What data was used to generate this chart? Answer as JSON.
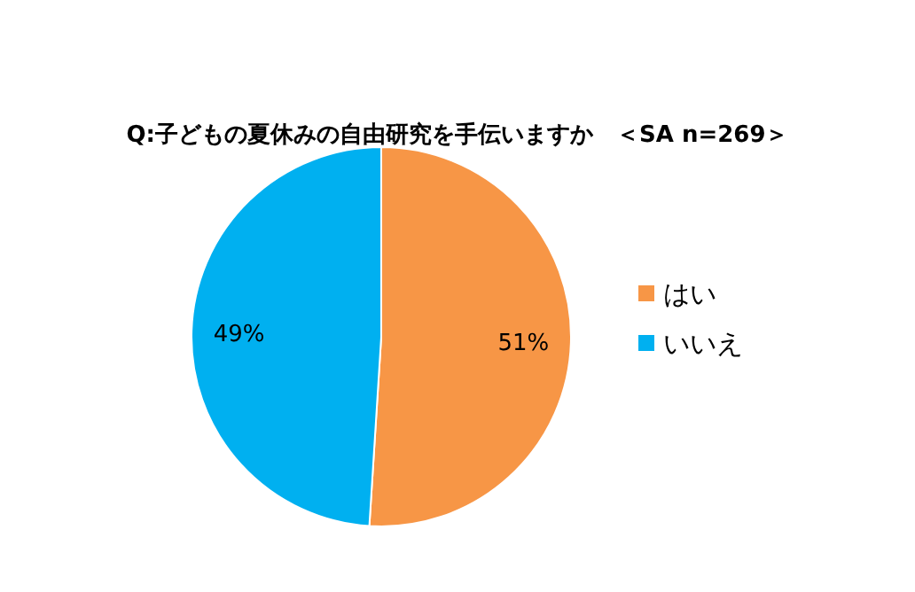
{
  "chart_data": {
    "type": "pie",
    "title": "Q:子どもの夏休みの自由研究を手伝いますか　＜SA n=269＞",
    "categories": [
      "はい",
      "いいえ"
    ],
    "values": [
      51,
      49
    ],
    "colors": [
      "#f79646",
      "#00b0f0"
    ],
    "value_labels": [
      "51%",
      "49%"
    ],
    "legend": "right"
  }
}
